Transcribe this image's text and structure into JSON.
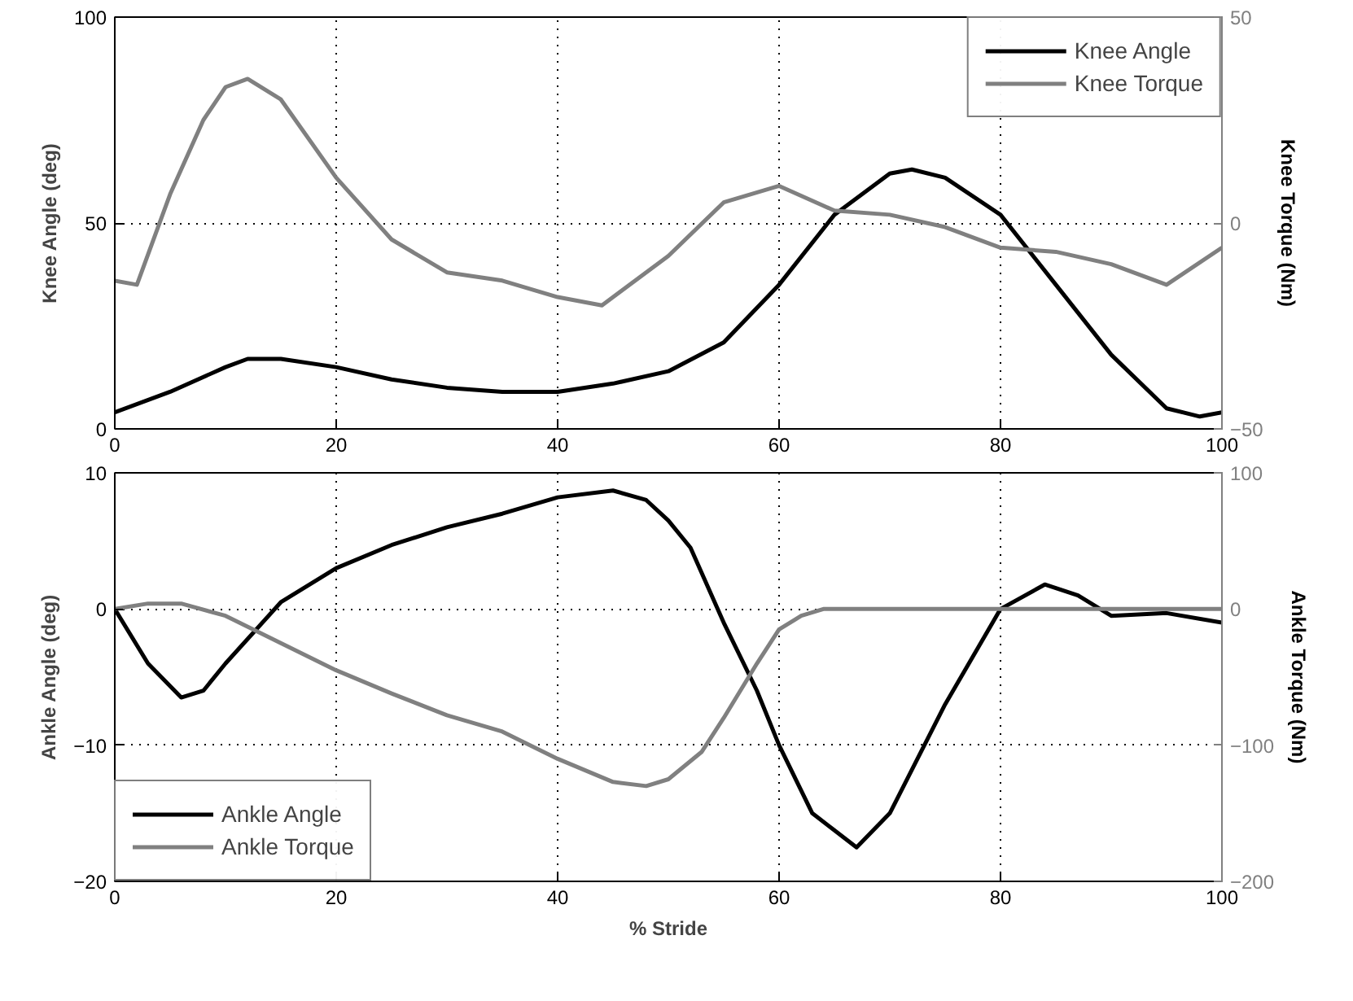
{
  "chart_data": [
    {
      "type": "line",
      "ylabel": "Knee Angle (deg)",
      "y2label": "Knee Torque (Nm)",
      "xlim": [
        0,
        100
      ],
      "xticks": [
        0,
        20,
        40,
        60,
        80,
        100
      ],
      "ylim": [
        0,
        100
      ],
      "yticks": [
        0,
        50,
        100
      ],
      "y2lim": [
        -50,
        50
      ],
      "y2ticks": [
        -50,
        0,
        50
      ],
      "grid": true,
      "legend": "top right",
      "line_style": "solid",
      "series": [
        {
          "name": "Knee Angle",
          "color": "#000000",
          "x": [
            0,
            5,
            10,
            12,
            15,
            20,
            25,
            30,
            35,
            40,
            45,
            50,
            55,
            60,
            65,
            70,
            72,
            75,
            80,
            85,
            90,
            95,
            98,
            100
          ],
          "values": [
            4,
            9,
            15,
            17,
            17,
            15,
            12,
            10,
            9,
            9,
            11,
            14,
            21,
            35,
            52,
            62,
            63,
            61,
            52,
            35,
            18,
            5,
            3,
            4
          ]
        },
        {
          "name": "Knee Torque",
          "color": "#808080",
          "axis": "y2",
          "x": [
            0,
            2,
            5,
            8,
            10,
            12,
            15,
            20,
            25,
            30,
            35,
            40,
            44,
            50,
            55,
            60,
            65,
            70,
            75,
            80,
            85,
            90,
            95,
            100
          ],
          "values": [
            -14,
            -15,
            7,
            25,
            33,
            35,
            30,
            11,
            -4,
            -12,
            -14,
            -18,
            -20,
            -8,
            5,
            9,
            3,
            2,
            -1,
            -6,
            -7,
            -10,
            -15,
            -6
          ]
        }
      ]
    },
    {
      "type": "line",
      "xlabel": "% Stride",
      "ylabel": "Ankle Angle (deg)",
      "y2label": "Ankle Torque (Nm)",
      "xlim": [
        0,
        100
      ],
      "xticks": [
        0,
        20,
        40,
        60,
        80,
        100
      ],
      "ylim": [
        -20,
        10
      ],
      "yticks": [
        -20,
        -10,
        0,
        10
      ],
      "y2lim": [
        -200,
        100
      ],
      "y2ticks": [
        -200,
        -100,
        0,
        100
      ],
      "grid": true,
      "legend": "bottom left",
      "line_style": "solid",
      "series": [
        {
          "name": "Ankle Angle",
          "color": "#000000",
          "x": [
            0,
            3,
            6,
            8,
            10,
            15,
            20,
            25,
            30,
            35,
            40,
            45,
            48,
            50,
            52,
            55,
            58,
            60,
            63,
            67,
            70,
            75,
            80,
            84,
            87,
            90,
            95,
            100
          ],
          "values": [
            0,
            -4,
            -6.5,
            -6,
            -4,
            0.5,
            3,
            4.7,
            6,
            7,
            8.2,
            8.7,
            8,
            6.5,
            4.5,
            -1,
            -6,
            -10,
            -15,
            -17.5,
            -15,
            -7,
            0,
            1.8,
            1,
            -0.5,
            -0.3,
            -1
          ]
        },
        {
          "name": "Ankle Torque",
          "color": "#808080",
          "axis": "y2",
          "x": [
            0,
            3,
            6,
            10,
            15,
            20,
            25,
            30,
            35,
            40,
            45,
            48,
            50,
            53,
            55,
            58,
            60,
            62,
            64,
            100
          ],
          "values": [
            0,
            4,
            4,
            -5,
            -25,
            -45,
            -62,
            -78,
            -90,
            -110,
            -127,
            -130,
            -125,
            -105,
            -80,
            -40,
            -15,
            -5,
            0,
            0
          ]
        }
      ]
    }
  ]
}
